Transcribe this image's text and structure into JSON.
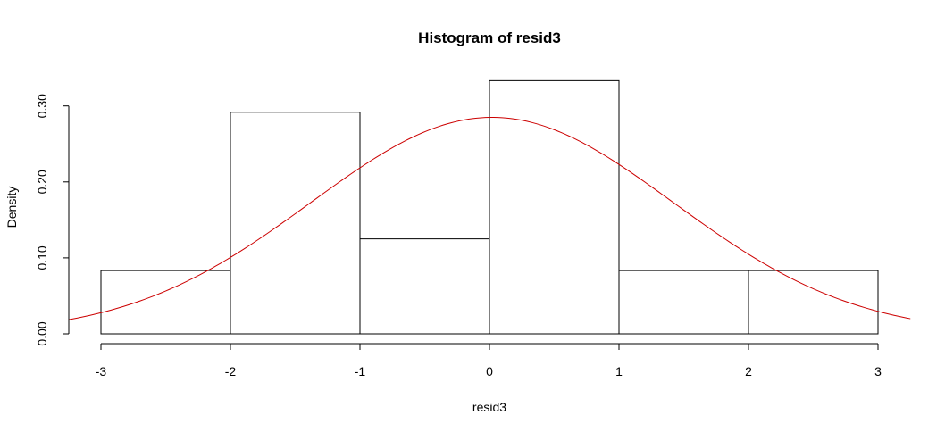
{
  "chart_data": {
    "type": "histogram",
    "title": "Histogram of resid3",
    "xlabel": "resid3",
    "ylabel": "Density",
    "xlim": [
      -3.25,
      3.25
    ],
    "ylim": [
      0,
      0.335
    ],
    "x_ticks": [
      "-3",
      "-2",
      "-1",
      "0",
      "1",
      "2",
      "3"
    ],
    "y_ticks": [
      "0.00",
      "0.10",
      "0.20",
      "0.30"
    ],
    "bins": [
      {
        "from": -3,
        "to": -2,
        "density": 0.0833
      },
      {
        "from": -2,
        "to": -1,
        "density": 0.2917
      },
      {
        "from": -1,
        "to": 0,
        "density": 0.125
      },
      {
        "from": 0,
        "to": 1,
        "density": 0.3333
      },
      {
        "from": 1,
        "to": 2,
        "density": 0.0833
      },
      {
        "from": 2,
        "to": 3,
        "density": 0.0833
      }
    ],
    "curve": {
      "type": "normal-density",
      "mean": 0.02,
      "sd": 1.4,
      "color": "#cc0000"
    },
    "bar_fill": "#ffffff",
    "bar_stroke": "#000000",
    "grid": false,
    "legend": "none"
  }
}
